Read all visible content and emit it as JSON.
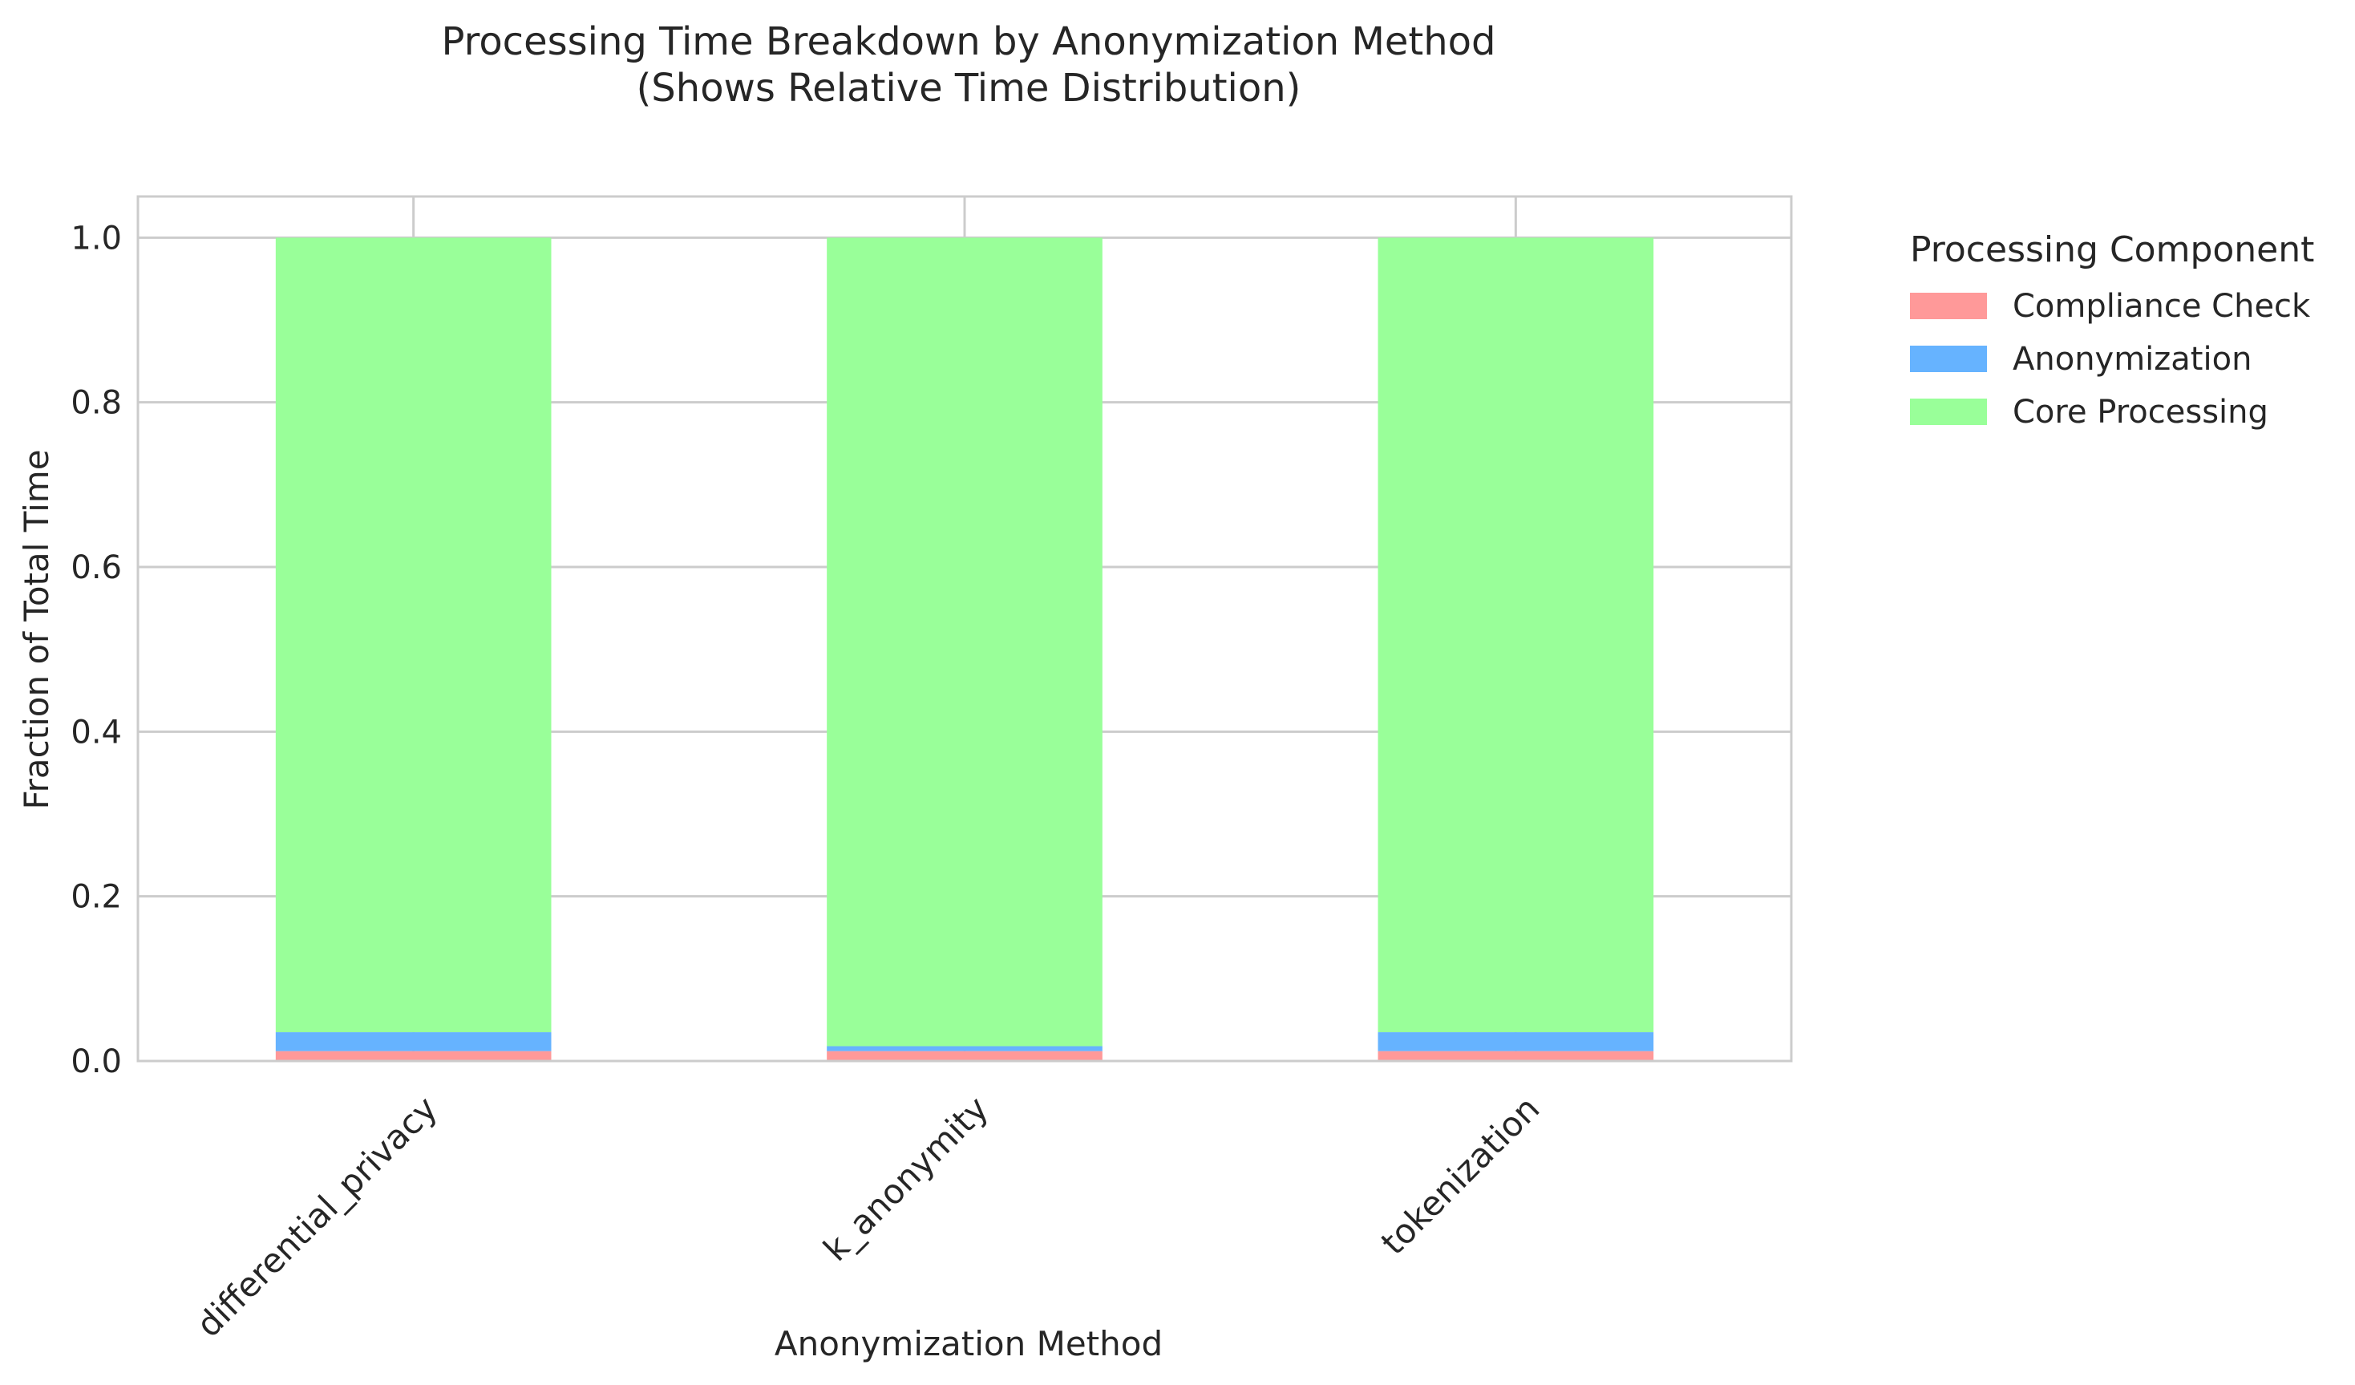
{
  "chart_data": {
    "type": "bar",
    "stacked": true,
    "title": "Processing Time Breakdown by Anonymization Method\n(Shows Relative Time Distribution)",
    "xlabel": "Anonymization Method",
    "ylabel": "Fraction of Total Time",
    "categories": [
      "differential_privacy",
      "k_anonymity",
      "tokenization"
    ],
    "ylim": [
      0,
      1.05
    ],
    "yticks": [
      "0.0",
      "0.2",
      "0.4",
      "0.6",
      "0.8",
      "1.0"
    ],
    "grid": true,
    "legend": {
      "title": "Processing Component",
      "position": "outside-top-right"
    },
    "series": [
      {
        "name": "Compliance Check",
        "color": "#ff9999",
        "values": [
          0.012,
          0.012,
          0.012
        ]
      },
      {
        "name": "Anonymization",
        "color": "#66b3ff",
        "values": [
          0.023,
          0.006,
          0.023
        ]
      },
      {
        "name": "Core Processing",
        "color": "#99ff99",
        "values": [
          0.965,
          0.982,
          0.965
        ]
      }
    ]
  }
}
